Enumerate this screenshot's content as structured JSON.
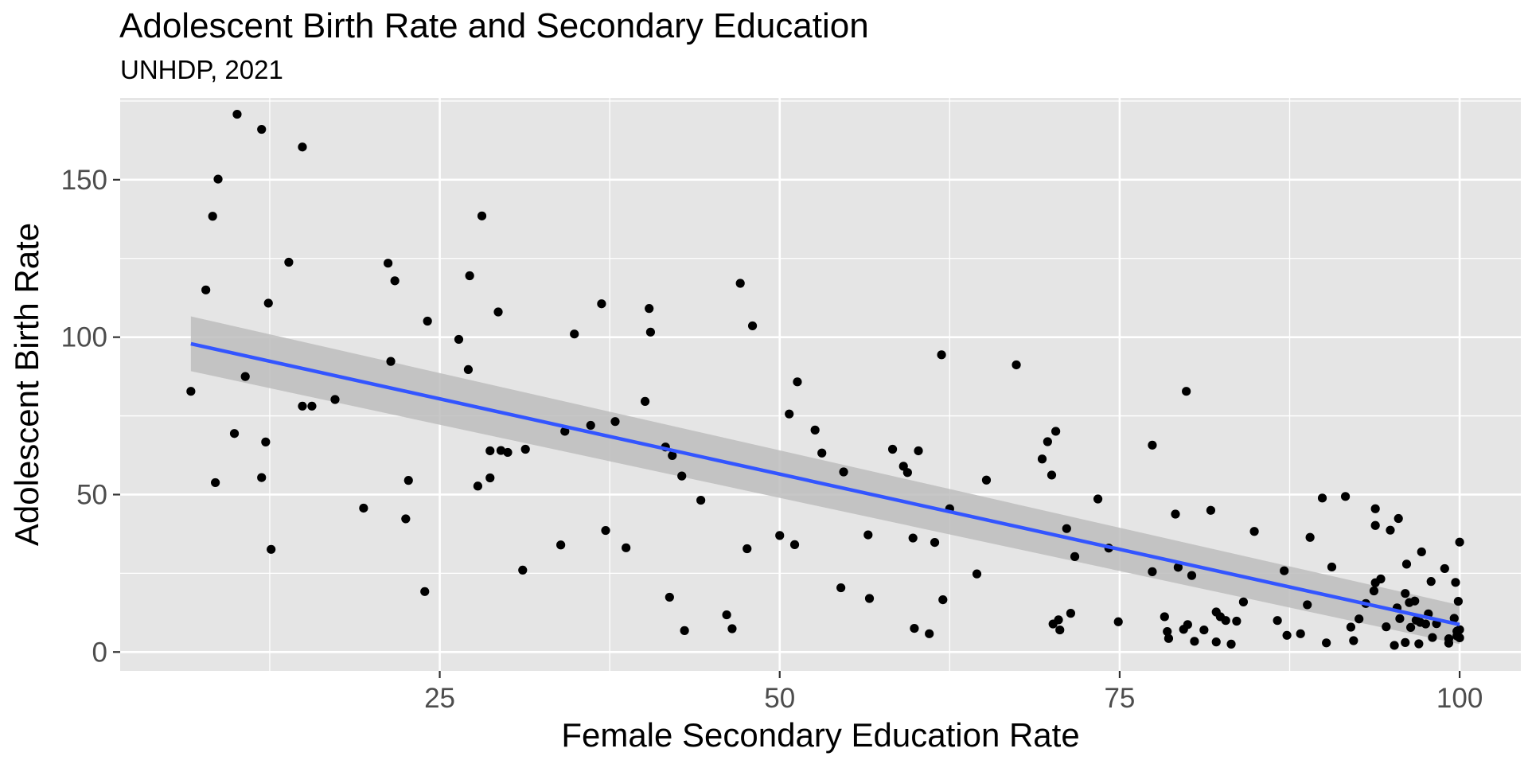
{
  "chart_data": {
    "type": "scatter",
    "title": "Adolescent Birth Rate and Secondary Education",
    "subtitle": "UNHDP, 2021",
    "xlabel": "Female Secondary Education Rate",
    "ylabel": "Adolescent Birth Rate",
    "xlim": [
      1.5,
      104.5
    ],
    "ylim": [
      -6,
      176
    ],
    "xticks": [
      25,
      50,
      75,
      100
    ],
    "xtick_labels": [
      "25",
      "50",
      "75",
      "100"
    ],
    "yticks": [
      0,
      50,
      100,
      150
    ],
    "ytick_labels": [
      "0",
      "50",
      "100",
      "150"
    ],
    "grid": true,
    "legend": "none",
    "colors": {
      "panel": "#e5e5e5",
      "grid": "#ffffff",
      "point": "#000000",
      "line": "#3355ff",
      "band": "#bdbdbd"
    },
    "points": [
      {
        "x": 6.7,
        "y": 82.8
      },
      {
        "x": 7.8,
        "y": 115
      },
      {
        "x": 8.3,
        "y": 138.4
      },
      {
        "x": 8.5,
        "y": 53.8
      },
      {
        "x": 8.7,
        "y": 150.2
      },
      {
        "x": 9.9,
        "y": 69.4
      },
      {
        "x": 10.1,
        "y": 170.8
      },
      {
        "x": 10.7,
        "y": 87.5
      },
      {
        "x": 11.9,
        "y": 55.4
      },
      {
        "x": 11.9,
        "y": 166
      },
      {
        "x": 12.2,
        "y": 66.7
      },
      {
        "x": 12.4,
        "y": 110.8
      },
      {
        "x": 12.6,
        "y": 32.6
      },
      {
        "x": 13.9,
        "y": 123.8
      },
      {
        "x": 14.9,
        "y": 160.4
      },
      {
        "x": 14.9,
        "y": 78.1
      },
      {
        "x": 15.6,
        "y": 78.1
      },
      {
        "x": 17.3,
        "y": 80.2
      },
      {
        "x": 19.4,
        "y": 45.7
      },
      {
        "x": 21.2,
        "y": 123.5
      },
      {
        "x": 21.4,
        "y": 92.3
      },
      {
        "x": 21.7,
        "y": 117.9
      },
      {
        "x": 22.5,
        "y": 42.3
      },
      {
        "x": 22.7,
        "y": 54.5
      },
      {
        "x": 23.9,
        "y": 19.2
      },
      {
        "x": 24.1,
        "y": 105.1
      },
      {
        "x": 26.4,
        "y": 99.3
      },
      {
        "x": 27.1,
        "y": 89.7
      },
      {
        "x": 27.2,
        "y": 119.5
      },
      {
        "x": 27.8,
        "y": 52.7
      },
      {
        "x": 28.1,
        "y": 138.5
      },
      {
        "x": 28.7,
        "y": 55.3
      },
      {
        "x": 28.7,
        "y": 63.9
      },
      {
        "x": 29.3,
        "y": 108
      },
      {
        "x": 29.5,
        "y": 64
      },
      {
        "x": 30,
        "y": 63.4
      },
      {
        "x": 31.1,
        "y": 26
      },
      {
        "x": 31.3,
        "y": 64.4
      },
      {
        "x": 33.9,
        "y": 34
      },
      {
        "x": 34.2,
        "y": 70.1
      },
      {
        "x": 34.9,
        "y": 101
      },
      {
        "x": 36.1,
        "y": 72
      },
      {
        "x": 36.9,
        "y": 110.6
      },
      {
        "x": 37.2,
        "y": 38.6
      },
      {
        "x": 37.9,
        "y": 73.2
      },
      {
        "x": 38.7,
        "y": 33.1
      },
      {
        "x": 40.1,
        "y": 79.6
      },
      {
        "x": 40.4,
        "y": 109.1
      },
      {
        "x": 40.5,
        "y": 101.6
      },
      {
        "x": 41.6,
        "y": 65.1
      },
      {
        "x": 41.9,
        "y": 17.4
      },
      {
        "x": 42.1,
        "y": 62.4
      },
      {
        "x": 42.8,
        "y": 55.9
      },
      {
        "x": 43,
        "y": 6.8
      },
      {
        "x": 44.2,
        "y": 48.2
      },
      {
        "x": 46.1,
        "y": 11.8
      },
      {
        "x": 46.5,
        "y": 7.4
      },
      {
        "x": 47.1,
        "y": 117.1
      },
      {
        "x": 47.6,
        "y": 32.8
      },
      {
        "x": 48,
        "y": 103.6
      },
      {
        "x": 50,
        "y": 37
      },
      {
        "x": 50.7,
        "y": 75.6
      },
      {
        "x": 51.1,
        "y": 34.1
      },
      {
        "x": 51.3,
        "y": 85.8
      },
      {
        "x": 52.6,
        "y": 70.5
      },
      {
        "x": 53.1,
        "y": 63.2
      },
      {
        "x": 54.5,
        "y": 20.4
      },
      {
        "x": 54.7,
        "y": 57.2
      },
      {
        "x": 56.5,
        "y": 37.2
      },
      {
        "x": 56.6,
        "y": 17
      },
      {
        "x": 58.3,
        "y": 64.4
      },
      {
        "x": 59.1,
        "y": 59
      },
      {
        "x": 59.4,
        "y": 57
      },
      {
        "x": 59.8,
        "y": 36.2
      },
      {
        "x": 59.9,
        "y": 7.5
      },
      {
        "x": 60.2,
        "y": 63.9
      },
      {
        "x": 61,
        "y": 5.8
      },
      {
        "x": 61.4,
        "y": 34.8
      },
      {
        "x": 61.9,
        "y": 94.4
      },
      {
        "x": 62,
        "y": 16.6
      },
      {
        "x": 62.5,
        "y": 45.5
      },
      {
        "x": 64.5,
        "y": 24.8
      },
      {
        "x": 65.2,
        "y": 54.6
      },
      {
        "x": 67.4,
        "y": 91.2
      },
      {
        "x": 69.3,
        "y": 61.3
      },
      {
        "x": 69.7,
        "y": 66.8
      },
      {
        "x": 70,
        "y": 56.2
      },
      {
        "x": 70.1,
        "y": 8.9
      },
      {
        "x": 70.3,
        "y": 70.1
      },
      {
        "x": 70.5,
        "y": 10.2
      },
      {
        "x": 70.6,
        "y": 7
      },
      {
        "x": 71.1,
        "y": 39.2
      },
      {
        "x": 71.4,
        "y": 12.3
      },
      {
        "x": 71.7,
        "y": 30.3
      },
      {
        "x": 73.4,
        "y": 48.6
      },
      {
        "x": 74.2,
        "y": 33
      },
      {
        "x": 74.9,
        "y": 9.6
      },
      {
        "x": 77.4,
        "y": 65.7
      },
      {
        "x": 77.4,
        "y": 25.5
      },
      {
        "x": 78.3,
        "y": 11.2
      },
      {
        "x": 78.5,
        "y": 6.5
      },
      {
        "x": 78.6,
        "y": 4.3
      },
      {
        "x": 79.1,
        "y": 43.8
      },
      {
        "x": 79.3,
        "y": 26.9
      },
      {
        "x": 79.7,
        "y": 7.2
      },
      {
        "x": 79.9,
        "y": 82.8
      },
      {
        "x": 80,
        "y": 8.7
      },
      {
        "x": 80.3,
        "y": 24.3
      },
      {
        "x": 80.5,
        "y": 3.4
      },
      {
        "x": 81.2,
        "y": 7
      },
      {
        "x": 81.7,
        "y": 45
      },
      {
        "x": 82.1,
        "y": 3.2
      },
      {
        "x": 82.1,
        "y": 12.7
      },
      {
        "x": 82.4,
        "y": 11.2
      },
      {
        "x": 82.8,
        "y": 10
      },
      {
        "x": 83.2,
        "y": 2.5
      },
      {
        "x": 83.6,
        "y": 9.8
      },
      {
        "x": 84.1,
        "y": 15.9
      },
      {
        "x": 84.9,
        "y": 38.3
      },
      {
        "x": 86.6,
        "y": 10
      },
      {
        "x": 87.1,
        "y": 25.8
      },
      {
        "x": 87.3,
        "y": 5.3
      },
      {
        "x": 88.3,
        "y": 5.8
      },
      {
        "x": 88.8,
        "y": 15
      },
      {
        "x": 89,
        "y": 36.4
      },
      {
        "x": 89.9,
        "y": 48.9
      },
      {
        "x": 90.2,
        "y": 2.9
      },
      {
        "x": 90.6,
        "y": 27
      },
      {
        "x": 91.6,
        "y": 49.4
      },
      {
        "x": 92,
        "y": 7.9
      },
      {
        "x": 92.2,
        "y": 3.6
      },
      {
        "x": 92.6,
        "y": 10.5
      },
      {
        "x": 93.1,
        "y": 15.4
      },
      {
        "x": 93.7,
        "y": 19.4
      },
      {
        "x": 93.8,
        "y": 22
      },
      {
        "x": 93.8,
        "y": 45.5
      },
      {
        "x": 93.8,
        "y": 40.2
      },
      {
        "x": 94.2,
        "y": 23.2
      },
      {
        "x": 94.6,
        "y": 8
      },
      {
        "x": 94.9,
        "y": 38.7
      },
      {
        "x": 95.2,
        "y": 2.1
      },
      {
        "x": 95.4,
        "y": 14
      },
      {
        "x": 95.5,
        "y": 42.4
      },
      {
        "x": 95.6,
        "y": 10.6
      },
      {
        "x": 96,
        "y": 3
      },
      {
        "x": 96,
        "y": 18.6
      },
      {
        "x": 96.1,
        "y": 27.9
      },
      {
        "x": 96.3,
        "y": 15.7
      },
      {
        "x": 96.4,
        "y": 7.8
      },
      {
        "x": 96.7,
        "y": 16.2
      },
      {
        "x": 96.8,
        "y": 10.1
      },
      {
        "x": 97,
        "y": 2.6
      },
      {
        "x": 97.1,
        "y": 9.4
      },
      {
        "x": 97.2,
        "y": 31.8
      },
      {
        "x": 97.5,
        "y": 8.9
      },
      {
        "x": 97.7,
        "y": 12.1
      },
      {
        "x": 97.9,
        "y": 22.4
      },
      {
        "x": 98,
        "y": 4.6
      },
      {
        "x": 98.3,
        "y": 9
      },
      {
        "x": 98.9,
        "y": 26.5
      },
      {
        "x": 99.2,
        "y": 2.8
      },
      {
        "x": 99.2,
        "y": 4.2
      },
      {
        "x": 99.6,
        "y": 10.7
      },
      {
        "x": 99.7,
        "y": 22.1
      },
      {
        "x": 99.8,
        "y": 6.6
      },
      {
        "x": 99.8,
        "y": 5.1
      },
      {
        "x": 99.9,
        "y": 16.1
      },
      {
        "x": 100,
        "y": 34.9
      },
      {
        "x": 100,
        "y": 4.5
      },
      {
        "x": 100,
        "y": 7.1
      }
    ],
    "trend_line": {
      "method": "linear",
      "x": [
        6.7,
        100
      ],
      "y": [
        97.9,
        8.7
      ]
    },
    "confidence_band": {
      "x": [
        6.7,
        100
      ],
      "lower": [
        89.2,
        2.5
      ],
      "upper": [
        106.6,
        14.9
      ]
    }
  }
}
